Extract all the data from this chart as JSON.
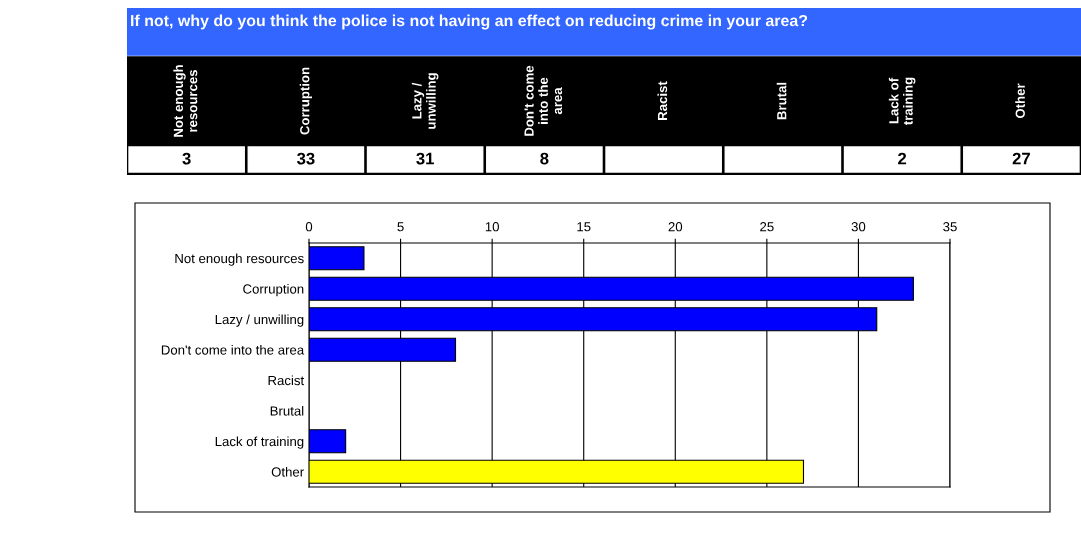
{
  "chart_data": [
    {
      "type": "other",
      "title": "If not, why do you think the police is not having an effect on reducing crime in your area?",
      "categories": [
        "Not enough resources",
        "Corruption",
        "Lazy / unwilling",
        "Don't come into the area",
        "Racist",
        "Brutal",
        "Lack of training",
        "Other"
      ],
      "values": [
        3,
        33,
        31,
        8,
        null,
        null,
        2,
        27
      ],
      "data_labels": true
    },
    {
      "type": "bar",
      "orientation": "horizontal",
      "categories": [
        "Not enough resources",
        "Corruption",
        "Lazy / unwilling",
        "Don't come into the area",
        "Racist",
        "Brutal",
        "Lack of training",
        "Other"
      ],
      "values": [
        3,
        33,
        31,
        8,
        null,
        null,
        2,
        27
      ],
      "colors": [
        "#0000ff",
        "#0000ff",
        "#0000ff",
        "#0000ff",
        "#0000ff",
        "#0000ff",
        "#0000ff",
        "#ffff00"
      ],
      "xlim": [
        0,
        35
      ],
      "xticks": [
        0,
        5,
        10,
        15,
        20,
        25,
        30,
        35
      ],
      "grid": "x"
    }
  ]
}
